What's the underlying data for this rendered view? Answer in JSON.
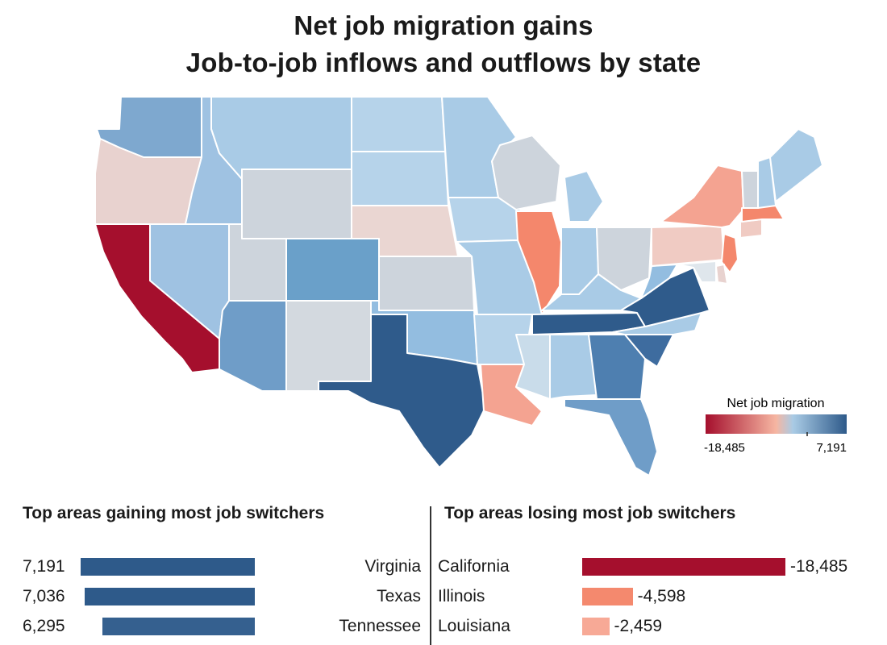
{
  "header": {
    "title": "Net job migration gains",
    "subtitle": "Job-to-job inflows and outflows by state"
  },
  "legend": {
    "title": "Net job migration",
    "min_label": "-18,485",
    "max_label": "7,191",
    "min": -18485,
    "max": 7191,
    "colors": [
      "#a50f2d",
      "#f6b6a2",
      "#a9cbe5",
      "#2e5a8a"
    ]
  },
  "gaining": {
    "heading": "Top areas gaining most job switchers",
    "items": [
      {
        "state": "Virginia",
        "value": 7191,
        "label": "7,191",
        "color": "#2e5a8a"
      },
      {
        "state": "Texas",
        "value": 7036,
        "label": "7,036",
        "color": "#2e5a8a"
      },
      {
        "state": "Tennessee",
        "value": 6295,
        "label": "6,295",
        "color": "#35608f"
      }
    ]
  },
  "losing": {
    "heading": "Top areas losing most job switchers",
    "items": [
      {
        "state": "California",
        "value": -18485,
        "label": "-18,485",
        "color": "#a50f2d"
      },
      {
        "state": "Illinois",
        "value": -4598,
        "label": "-4,598",
        "color": "#f4896e"
      },
      {
        "state": "Louisiana",
        "value": -2459,
        "label": "-2,459",
        "color": "#f7a996"
      }
    ]
  },
  "map_colors": {
    "WA": "#7ea8cf",
    "OR": "#e8d2cf",
    "CA": "#a50f2d",
    "ID": "#9fc2e2",
    "NV": "#9fc2e2",
    "MT": "#a9cbe6",
    "WY": "#cdd4dc",
    "UT": "#cdd4dc",
    "AZ": "#6f9dc8",
    "CO": "#6aa0c9",
    "NM": "#d3d9df",
    "ND": "#b6d3ea",
    "SD": "#b6d3ea",
    "NE": "#ead6d2",
    "KS": "#cdd4dc",
    "OK": "#93bde0",
    "TX": "#2f5b8b",
    "MN": "#a9cbe6",
    "IA": "#b6d3ea",
    "MO": "#a9cbe6",
    "AR": "#b6d3ea",
    "LA": "#f4a391",
    "WI": "#cdd4dc",
    "IL": "#f4876c",
    "MI": "#a9cbe6",
    "IN": "#a9cbe6",
    "OH": "#cdd4dc",
    "KY": "#a9cbe6",
    "TN": "#2f5b8b",
    "MS": "#c9dcea",
    "AL": "#a9cbe6",
    "GA": "#4e7fb0",
    "FL": "#6f9dc8",
    "SC": "#3e6c9f",
    "NC": "#a9cbe6",
    "VA": "#2f5b8b",
    "WV": "#93bde0",
    "PA": "#f0cbc3",
    "NY": "#f4a391",
    "NJ": "#f4876c",
    "ME": "#a9cbe6",
    "VT": "#cdd4dc",
    "NH": "#a9cbe6",
    "MA": "#f4876c",
    "CT": "#f0cbc3",
    "DE": "#e8d2cf",
    "MD": "#dfe6ec"
  }
}
